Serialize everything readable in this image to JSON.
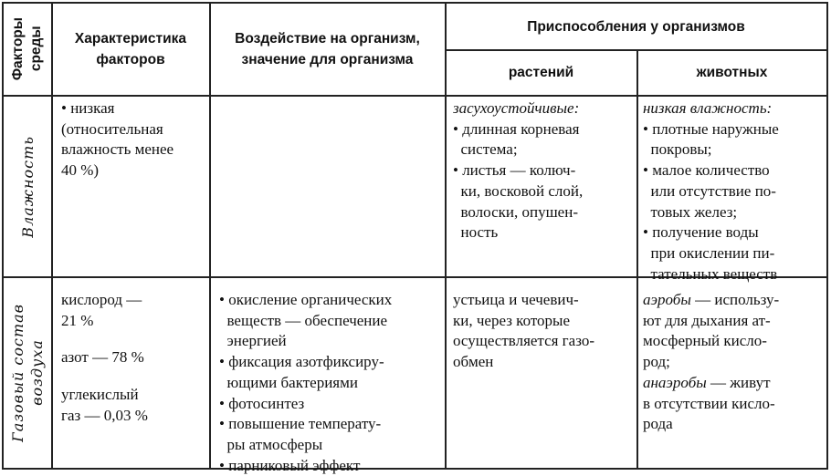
{
  "header": {
    "factors": [
      "Факторы",
      "среды"
    ],
    "characteristic": [
      "Характеристика",
      "факторов"
    ],
    "impact": [
      "Воздействие на организм,",
      "значение для организма"
    ],
    "adaptations": "Приспособления у организмов",
    "plants": "растений",
    "animals": "животных"
  },
  "rows": [
    {
      "factor": "Влажность",
      "characteristic": [
        [
          "• низкая"
        ],
        [
          "(относительная"
        ],
        [
          "влажность менее"
        ],
        [
          "40 %)"
        ]
      ],
      "impact": [],
      "plants": [
        [
          {
            "i": "засухоустойчивые:"
          }
        ],
        [
          "• длинная корневая"
        ],
        [
          "  система;"
        ],
        [
          "• листья — колюч-"
        ],
        [
          "  ки, восковой слой,"
        ],
        [
          "  волоски, опушен-"
        ],
        [
          "  ность"
        ]
      ],
      "animals": [
        [
          {
            "i": "низкая влажность:"
          }
        ],
        [
          "• плотные наружные"
        ],
        [
          "  покровы;"
        ],
        [
          "• малое количество"
        ],
        [
          "  или отсутствие по-"
        ],
        [
          "  товых желез;"
        ],
        [
          "• получение воды"
        ],
        [
          "  при окислении пи-"
        ],
        [
          "  тательных веществ"
        ]
      ]
    },
    {
      "factor": [
        "Газовый состав",
        "воздуха"
      ],
      "characteristic": [
        [
          "кислород —"
        ],
        [
          "21 %"
        ],
        [],
        [
          "азот — 78 %"
        ],
        [],
        [
          "углекислый"
        ],
        [
          "газ — 0,03 %"
        ]
      ],
      "impact": [
        [
          "• окисление органических"
        ],
        [
          "  веществ — обеспечение"
        ],
        [
          "  энергией"
        ],
        [
          "• фиксация азотфиксиру-"
        ],
        [
          "  ющими бактериями"
        ],
        [
          "• фотосинтез"
        ],
        [
          "• повышение температу-"
        ],
        [
          "  ры атмосферы"
        ],
        [
          "• парниковый эффект"
        ]
      ],
      "plants": [
        [
          "устьица и чечевич-"
        ],
        [
          "ки, через которые"
        ],
        [
          "осуществляется газо-"
        ],
        [
          "обмен"
        ]
      ],
      "animals": [
        [
          {
            "i": "аэробы"
          },
          " — использу-"
        ],
        [
          "ют для дыхания ат-"
        ],
        [
          "мосферный кисло-"
        ],
        [
          "род;"
        ],
        [
          {
            "i": "анаэробы"
          },
          " — живут"
        ],
        [
          "в отсутствии кисло-"
        ],
        [
          "рода"
        ]
      ]
    }
  ]
}
